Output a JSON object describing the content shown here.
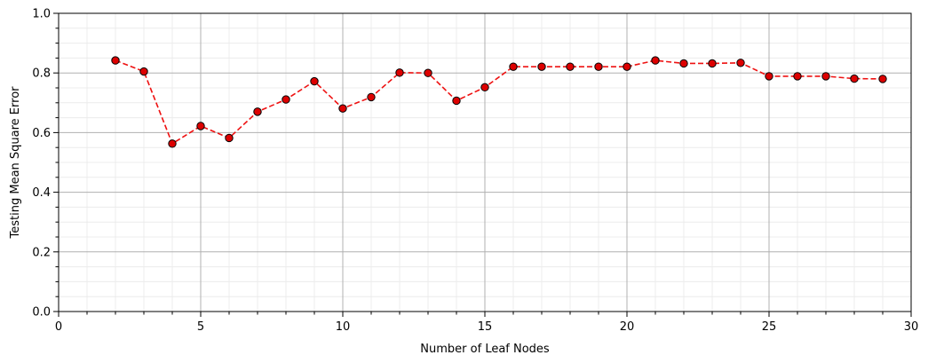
{
  "chart_data": {
    "type": "line",
    "title": "",
    "xlabel": "Number of Leaf Nodes",
    "ylabel": "Testing Mean Square Error",
    "xlim": [
      0,
      30
    ],
    "ylim": [
      0.0,
      1.0
    ],
    "x_ticks": [
      0,
      5,
      10,
      15,
      20,
      25,
      30
    ],
    "y_ticks": [
      0.0,
      0.2,
      0.4,
      0.6,
      0.8,
      1.0
    ],
    "x_tick_labels": [
      "0",
      "5",
      "10",
      "15",
      "20",
      "25",
      "30"
    ],
    "y_tick_labels": [
      "0.0",
      "0.2",
      "0.4",
      "0.6",
      "0.8",
      "1.0"
    ],
    "grid": true,
    "minor_grid": true,
    "series": [
      {
        "line_style": "dashed",
        "color": "#ee1111",
        "marker_fill": "#dd0000",
        "marker_edge": "#000000",
        "x": [
          2,
          3,
          4,
          5,
          6,
          7,
          8,
          9,
          10,
          11,
          12,
          13,
          14,
          15,
          16,
          17,
          18,
          19,
          20,
          21,
          22,
          23,
          24,
          25,
          26,
          27,
          28,
          29
        ],
        "values": [
          0.842,
          0.805,
          0.563,
          0.622,
          0.582,
          0.67,
          0.711,
          0.772,
          0.681,
          0.719,
          0.801,
          0.8,
          0.707,
          0.752,
          0.821,
          0.821,
          0.821,
          0.821,
          0.821,
          0.842,
          0.832,
          0.832,
          0.834,
          0.789,
          0.789,
          0.789,
          0.781,
          0.78
        ]
      }
    ]
  }
}
